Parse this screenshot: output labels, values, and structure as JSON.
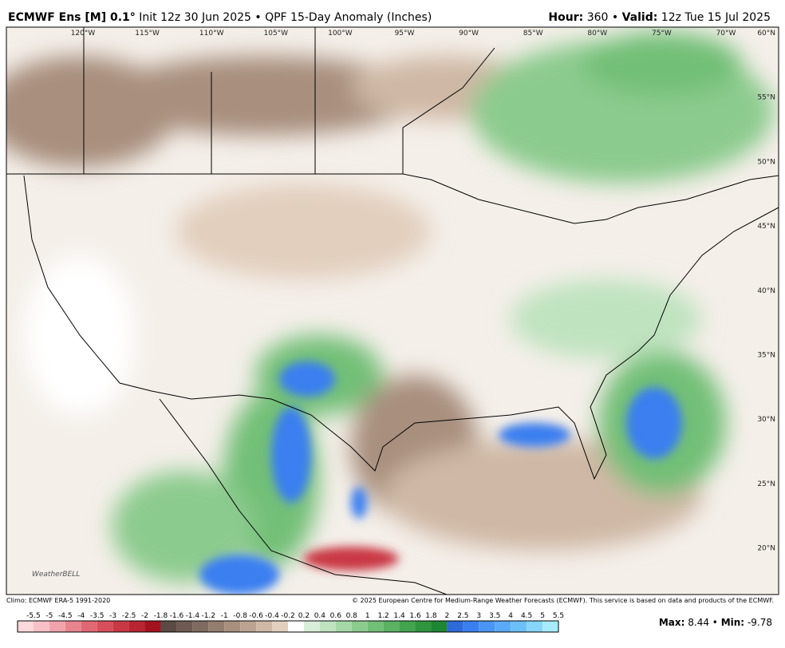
{
  "header": {
    "model": "ECMWF Ens [M] 0.1°",
    "init": "Init 12z 30 Jun 2025",
    "separator": "•",
    "product": "QPF 15-Day Anomaly (Inches)",
    "hour_label": "Hour:",
    "hour": 360,
    "valid_label": "Valid:",
    "valid": "12z Tue 15 Jul 2025"
  },
  "map": {
    "lon_labels": [
      "120°W",
      "115°W",
      "110°W",
      "105°W",
      "100°W",
      "95°W",
      "90°W",
      "85°W",
      "80°W",
      "75°W",
      "70°W"
    ],
    "lat_labels": [
      "60°N",
      "55°N",
      "50°N",
      "45°N",
      "40°N",
      "35°N",
      "30°N",
      "25°N",
      "20°N"
    ],
    "logo": "WeatherBELL"
  },
  "footer": {
    "climo": "Climo: ECMWF ERA-5 1991-2020",
    "copyright": "© 2025 European Centre for Medium-Range Weather Forecasts (ECMWF). This service is based on data and products of the ECMWF."
  },
  "colorbar": {
    "labels": [
      -5.5,
      -5,
      -4.5,
      -4,
      -3.5,
      -3,
      -2.5,
      -2,
      -1.8,
      -1.6,
      -1.4,
      -1.2,
      -1,
      -0.8,
      -0.6,
      -0.4,
      -0.2,
      0.2,
      0.4,
      0.6,
      0.8,
      1,
      1.2,
      1.4,
      1.6,
      1.8,
      2,
      2.5,
      3,
      3.5,
      4,
      4.5,
      5,
      5.5
    ],
    "colors": [
      "#fbd9dc",
      "#f7c0c6",
      "#f0a3ab",
      "#e8848e",
      "#e06873",
      "#d64f5b",
      "#c93845",
      "#b82432",
      "#a3131f",
      "#5c4a45",
      "#6e5a52",
      "#806b60",
      "#937d6f",
      "#a88f7e",
      "#bca391",
      "#cfb8a5",
      "#e2cfbe",
      "#ffffff",
      "#d8eed8",
      "#bfe3bf",
      "#a5d8a6",
      "#8ccb8e",
      "#72bf77",
      "#5ab262",
      "#43a44f",
      "#2f963f",
      "#1f8733",
      "#2e6ad8",
      "#3a7ff0",
      "#4a95f5",
      "#5aaaf7",
      "#6cc0f8",
      "#85d6f9",
      "#a8ebfa"
    ],
    "max_label": "Max:",
    "max": 8.44,
    "min_label": "Min:",
    "min": -9.78
  }
}
